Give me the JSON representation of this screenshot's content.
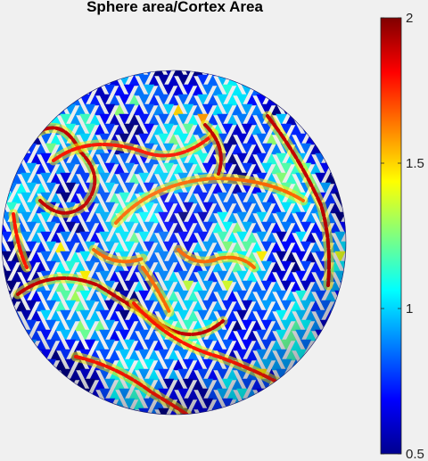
{
  "chart_data": {
    "type": "heatmap",
    "title": "Sphere area/Cortex Area",
    "surface": "sphere",
    "colormap": "jet",
    "colorbar": {
      "min": 0.5,
      "max": 2,
      "ticks": [
        {
          "value": 2,
          "label": "2"
        },
        {
          "value": 1.5,
          "label": "1.5"
        },
        {
          "value": 1,
          "label": "1"
        },
        {
          "value": 0.5,
          "label": "0.5"
        }
      ],
      "position": "right"
    },
    "typical_value": 0.85,
    "ridge_value": 1.9,
    "grid": false
  }
}
